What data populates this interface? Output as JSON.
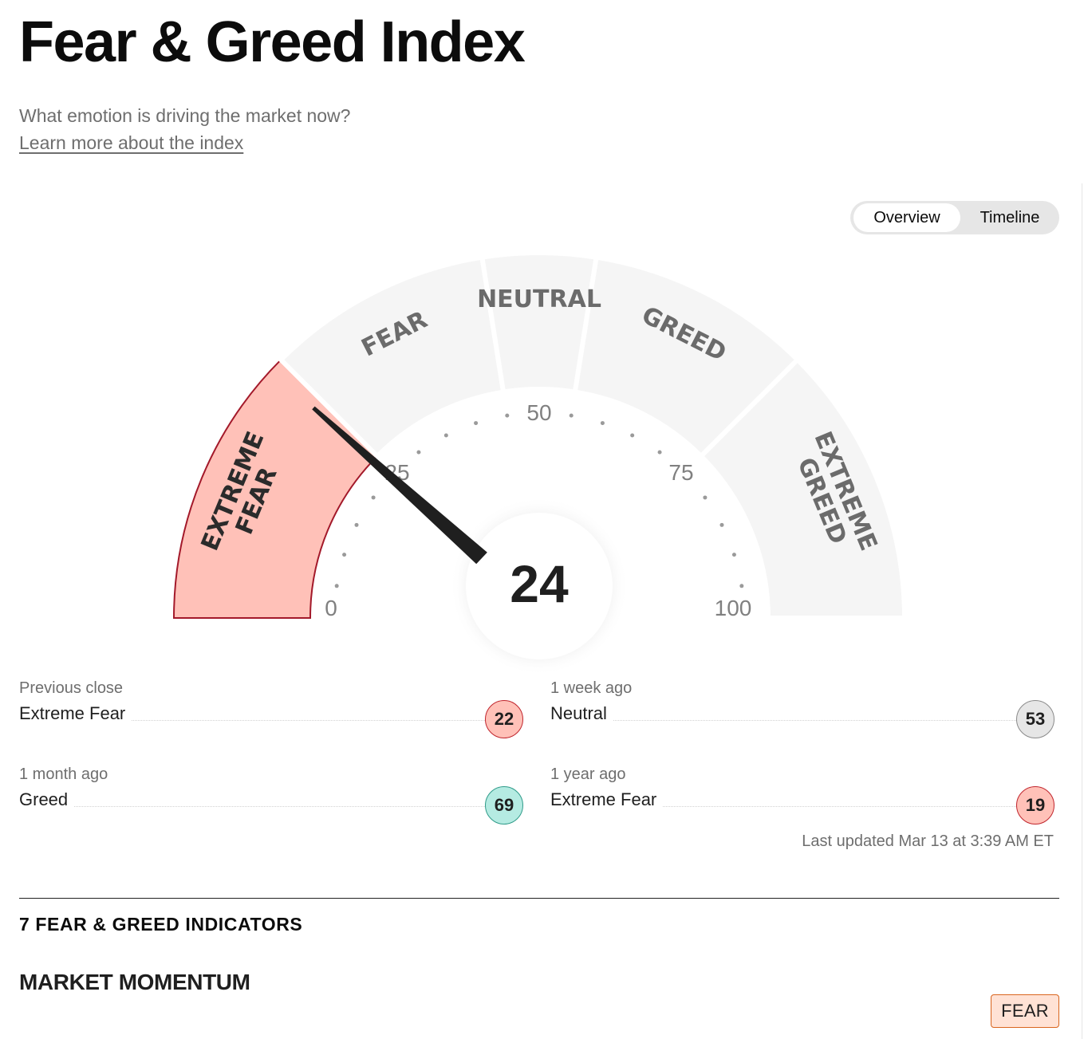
{
  "header": {
    "title": "Fear & Greed Index",
    "subtitle": "What emotion is driving the market now?",
    "learn_more": "Learn more about the index"
  },
  "view_toggle": {
    "overview": "Overview",
    "timeline": "Timeline",
    "selected": "Overview"
  },
  "gauge": {
    "score": "24",
    "score_value": 24,
    "segments": [
      {
        "label_line1": "EXTREME",
        "label_line2": "FEAR",
        "range": [
          0,
          25
        ],
        "active": true
      },
      {
        "label_line1": "FEAR",
        "label_line2": "",
        "range": [
          25,
          45
        ],
        "active": false
      },
      {
        "label_line1": "NEUTRAL",
        "label_line2": "",
        "range": [
          45,
          55
        ],
        "active": false
      },
      {
        "label_line1": "GREED",
        "label_line2": "",
        "range": [
          55,
          75
        ],
        "active": false
      },
      {
        "label_line1": "EXTREME",
        "label_line2": "GREED",
        "range": [
          75,
          100
        ],
        "active": false
      }
    ],
    "tick_labels": [
      "0",
      "25",
      "50",
      "75",
      "100"
    ],
    "colors": {
      "active_fill": "#ffc1b8",
      "active_stroke": "#a3192a",
      "inactive_fill": "#f5f5f5",
      "needle": "#1f1f1f"
    }
  },
  "history": [
    {
      "label": "Previous close",
      "value": "Extreme Fear",
      "score": "22",
      "level": "extreme-fear"
    },
    {
      "label": "1 week ago",
      "value": "Neutral",
      "score": "53",
      "level": "neutral"
    },
    {
      "label": "1 month ago",
      "value": "Greed",
      "score": "69",
      "level": "greed"
    },
    {
      "label": "1 year ago",
      "value": "Extreme Fear",
      "score": "19",
      "level": "extreme-fear"
    }
  ],
  "last_updated": "Last updated Mar 13 at 3:39 AM ET",
  "indicators": {
    "title": "7 FEAR & GREED INDICATORS",
    "first": {
      "name": "MARKET MOMENTUM",
      "rating": "FEAR"
    }
  }
}
